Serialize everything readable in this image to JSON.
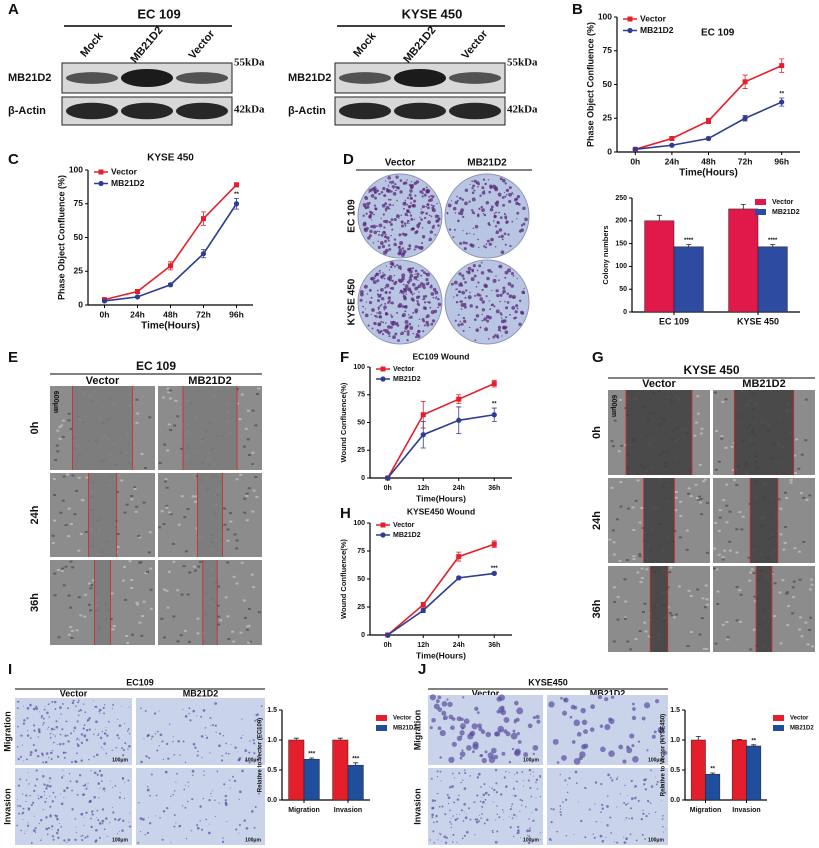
{
  "panels": [
    "A",
    "B",
    "C",
    "D",
    "E",
    "F",
    "G",
    "H",
    "I",
    "J"
  ],
  "blots": [
    {
      "title": "EC 109",
      "lanes": [
        "Mock",
        "MB21D2",
        "Vector"
      ],
      "rows": [
        "MB21D2",
        "β-Actin"
      ],
      "sizes": [
        "55kDa",
        "42kDa"
      ]
    },
    {
      "title": "KYSE 450",
      "lanes": [
        "Mock",
        "MB21D2",
        "Vector"
      ],
      "rows": [
        "MB21D2",
        "β-Actin"
      ],
      "sizes": [
        "55kDa",
        "42kDa"
      ]
    }
  ],
  "colony": {
    "columns": [
      "Vector",
      "MB21D2"
    ],
    "rows": [
      "EC 109",
      "KYSE 450"
    ]
  },
  "wound": [
    {
      "title": "EC 109",
      "columns": [
        "Vector",
        "MB21D2"
      ],
      "rows": [
        "0h",
        "24h",
        "36h"
      ],
      "scale": "600μm"
    },
    {
      "title": "KYSE 450",
      "columns": [
        "Vector",
        "MB21D2"
      ],
      "rows": [
        "0h",
        "24h",
        "36h"
      ],
      "scale": "600μm"
    }
  ],
  "transwell": [
    {
      "title": "EC109",
      "columns": [
        "Vector",
        "MB21D2"
      ],
      "rows": [
        "Migration",
        "Invasion"
      ],
      "scale": "100μm"
    },
    {
      "title": "KYSE450",
      "columns": [
        "Vector",
        "MB21D2"
      ],
      "rows": [
        "Migration",
        "Invasion"
      ],
      "scale": "100μm"
    }
  ],
  "chart_data": [
    {
      "type": "line",
      "title": "EC 109",
      "x_label": "Time(Hours)",
      "y_label": "Phase Object Confluence (%)",
      "categories": [
        "0h",
        "24h",
        "48h",
        "72h",
        "96h"
      ],
      "ylim": [
        0,
        100
      ],
      "yticks": [
        0,
        25,
        50,
        75,
        100
      ],
      "legend": "upper left",
      "series": [
        {
          "name": "Vector",
          "color": "#e41f2b",
          "marker": "square",
          "values": [
            2,
            10,
            23,
            52,
            64
          ],
          "errors": [
            0.5,
            1,
            2,
            5,
            5
          ],
          "annotations": [
            null,
            null,
            null,
            null,
            null
          ]
        },
        {
          "name": "MB21D2",
          "color": "#2e3c92",
          "marker": "circle",
          "values": [
            2,
            5,
            10,
            25,
            37
          ],
          "errors": [
            0.5,
            0.5,
            1,
            2,
            3
          ],
          "annotations": [
            null,
            null,
            null,
            null,
            "**"
          ]
        }
      ]
    },
    {
      "type": "line",
      "title": "KYSE 450",
      "x_label": "Time(Hours)",
      "y_label": "Phase Object Confluence (%)",
      "categories": [
        "0h",
        "24h",
        "48h",
        "72h",
        "96h"
      ],
      "ylim": [
        0,
        100
      ],
      "yticks": [
        0,
        25,
        50,
        75,
        100
      ],
      "legend": "upper left",
      "series": [
        {
          "name": "Vector",
          "color": "#e41f2b",
          "marker": "square",
          "values": [
            4,
            10,
            29,
            64,
            89
          ],
          "errors": [
            1,
            1,
            3,
            5,
            1.5
          ],
          "annotations": [
            null,
            null,
            null,
            null,
            null
          ]
        },
        {
          "name": "MB21D2",
          "color": "#2e3c92",
          "marker": "circle",
          "values": [
            3,
            6,
            15,
            38,
            75
          ],
          "errors": [
            0.5,
            0.5,
            1,
            3,
            4
          ],
          "annotations": [
            null,
            null,
            null,
            null,
            "**"
          ]
        }
      ]
    },
    {
      "type": "bar",
      "y_label": "Colony numbers",
      "categories": [
        "EC 109",
        "KYSE 450"
      ],
      "ylim": [
        0,
        250
      ],
      "yticks": [
        0,
        50,
        100,
        150,
        200,
        250
      ],
      "legend": "upper right",
      "series": [
        {
          "name": "Vector",
          "color": "#e0194a",
          "values": [
            200,
            226
          ],
          "errors": [
            12,
            10
          ],
          "annotations": [
            null,
            null
          ]
        },
        {
          "name": "MB21D2",
          "color": "#2d4ba0",
          "values": [
            143,
            143
          ],
          "errors": [
            5,
            5
          ],
          "annotations": [
            "****",
            "****"
          ]
        }
      ]
    },
    {
      "type": "line",
      "title": "EC109 Wound",
      "x_label": "Time(Hours)",
      "y_label": "Wound Confluence(%)",
      "categories": [
        "0h",
        "12h",
        "24h",
        "36h"
      ],
      "ylim": [
        0,
        100
      ],
      "yticks": [
        0,
        25,
        50,
        75,
        100
      ],
      "legend": "upper left",
      "series": [
        {
          "name": "Vector",
          "color": "#e41f2b",
          "marker": "square",
          "values": [
            0,
            57,
            71,
            85
          ],
          "errors": [
            1,
            12,
            4,
            3
          ],
          "annotations": [
            null,
            null,
            null,
            null
          ]
        },
        {
          "name": "MB21D2",
          "color": "#2e3c92",
          "marker": "circle",
          "values": [
            0,
            39,
            52,
            57
          ],
          "errors": [
            1,
            12,
            12,
            6
          ],
          "annotations": [
            null,
            null,
            null,
            "**"
          ]
        }
      ]
    },
    {
      "type": "line",
      "title": "KYSE450 Wound",
      "x_label": "Time(Hours)",
      "y_label": "Wound Confluence(%)",
      "categories": [
        "0h",
        "12h",
        "24h",
        "36h"
      ],
      "ylim": [
        0,
        100
      ],
      "yticks": [
        0,
        25,
        50,
        75,
        100
      ],
      "legend": "upper left",
      "series": [
        {
          "name": "Vector",
          "color": "#e41f2b",
          "marker": "square",
          "values": [
            0,
            27,
            70,
            81
          ],
          "errors": [
            0.5,
            2,
            4,
            3
          ],
          "annotations": [
            null,
            null,
            null,
            null
          ]
        },
        {
          "name": "MB21D2",
          "color": "#2e3c92",
          "marker": "circle",
          "values": [
            0,
            22,
            51,
            55
          ],
          "errors": [
            0.5,
            2,
            1,
            1
          ],
          "annotations": [
            null,
            null,
            null,
            "***"
          ]
        }
      ]
    },
    {
      "type": "bar",
      "y_label": "Relative to Vector (EC109)",
      "categories": [
        "Migration",
        "Invasion"
      ],
      "ylim": [
        0,
        1.5
      ],
      "yticks": [
        {
          "value": 0,
          "label": "0.0"
        },
        {
          "value": 0.5,
          "label": "0.5"
        },
        {
          "value": 1,
          "label": "1.0"
        },
        {
          "value": 1.5,
          "label": "1.5"
        }
      ],
      "legend": "outside right",
      "series": [
        {
          "name": "Vector",
          "color": "#e41f2b",
          "values": [
            1.0,
            1.0
          ],
          "errors": [
            0.03,
            0.03
          ],
          "annotations": [
            null,
            null
          ]
        },
        {
          "name": "MB21D2",
          "color": "#1f4e9c",
          "values": [
            0.68,
            0.58
          ],
          "errors": [
            0.02,
            0.04
          ],
          "annotations": [
            "***",
            "***"
          ]
        }
      ]
    },
    {
      "type": "bar",
      "y_label": "Relative to Vector (KYSE450)",
      "categories": [
        "Migration",
        "Invasion"
      ],
      "ylim": [
        0,
        1.5
      ],
      "yticks": [
        {
          "value": 0,
          "label": "0.0"
        },
        {
          "value": 0.5,
          "label": "0.5"
        },
        {
          "value": 1,
          "label": "1.0"
        },
        {
          "value": 1.5,
          "label": "1.5"
        }
      ],
      "legend": "outside right",
      "series": [
        {
          "name": "Vector",
          "color": "#e41f2b",
          "values": [
            1.0,
            1.0
          ],
          "errors": [
            0.06,
            0.01
          ],
          "annotations": [
            null,
            null
          ]
        },
        {
          "name": "MB21D2",
          "color": "#1f4e9c",
          "values": [
            0.43,
            0.9
          ],
          "errors": [
            0.02,
            0.02
          ],
          "annotations": [
            "**",
            "**"
          ]
        }
      ]
    }
  ]
}
